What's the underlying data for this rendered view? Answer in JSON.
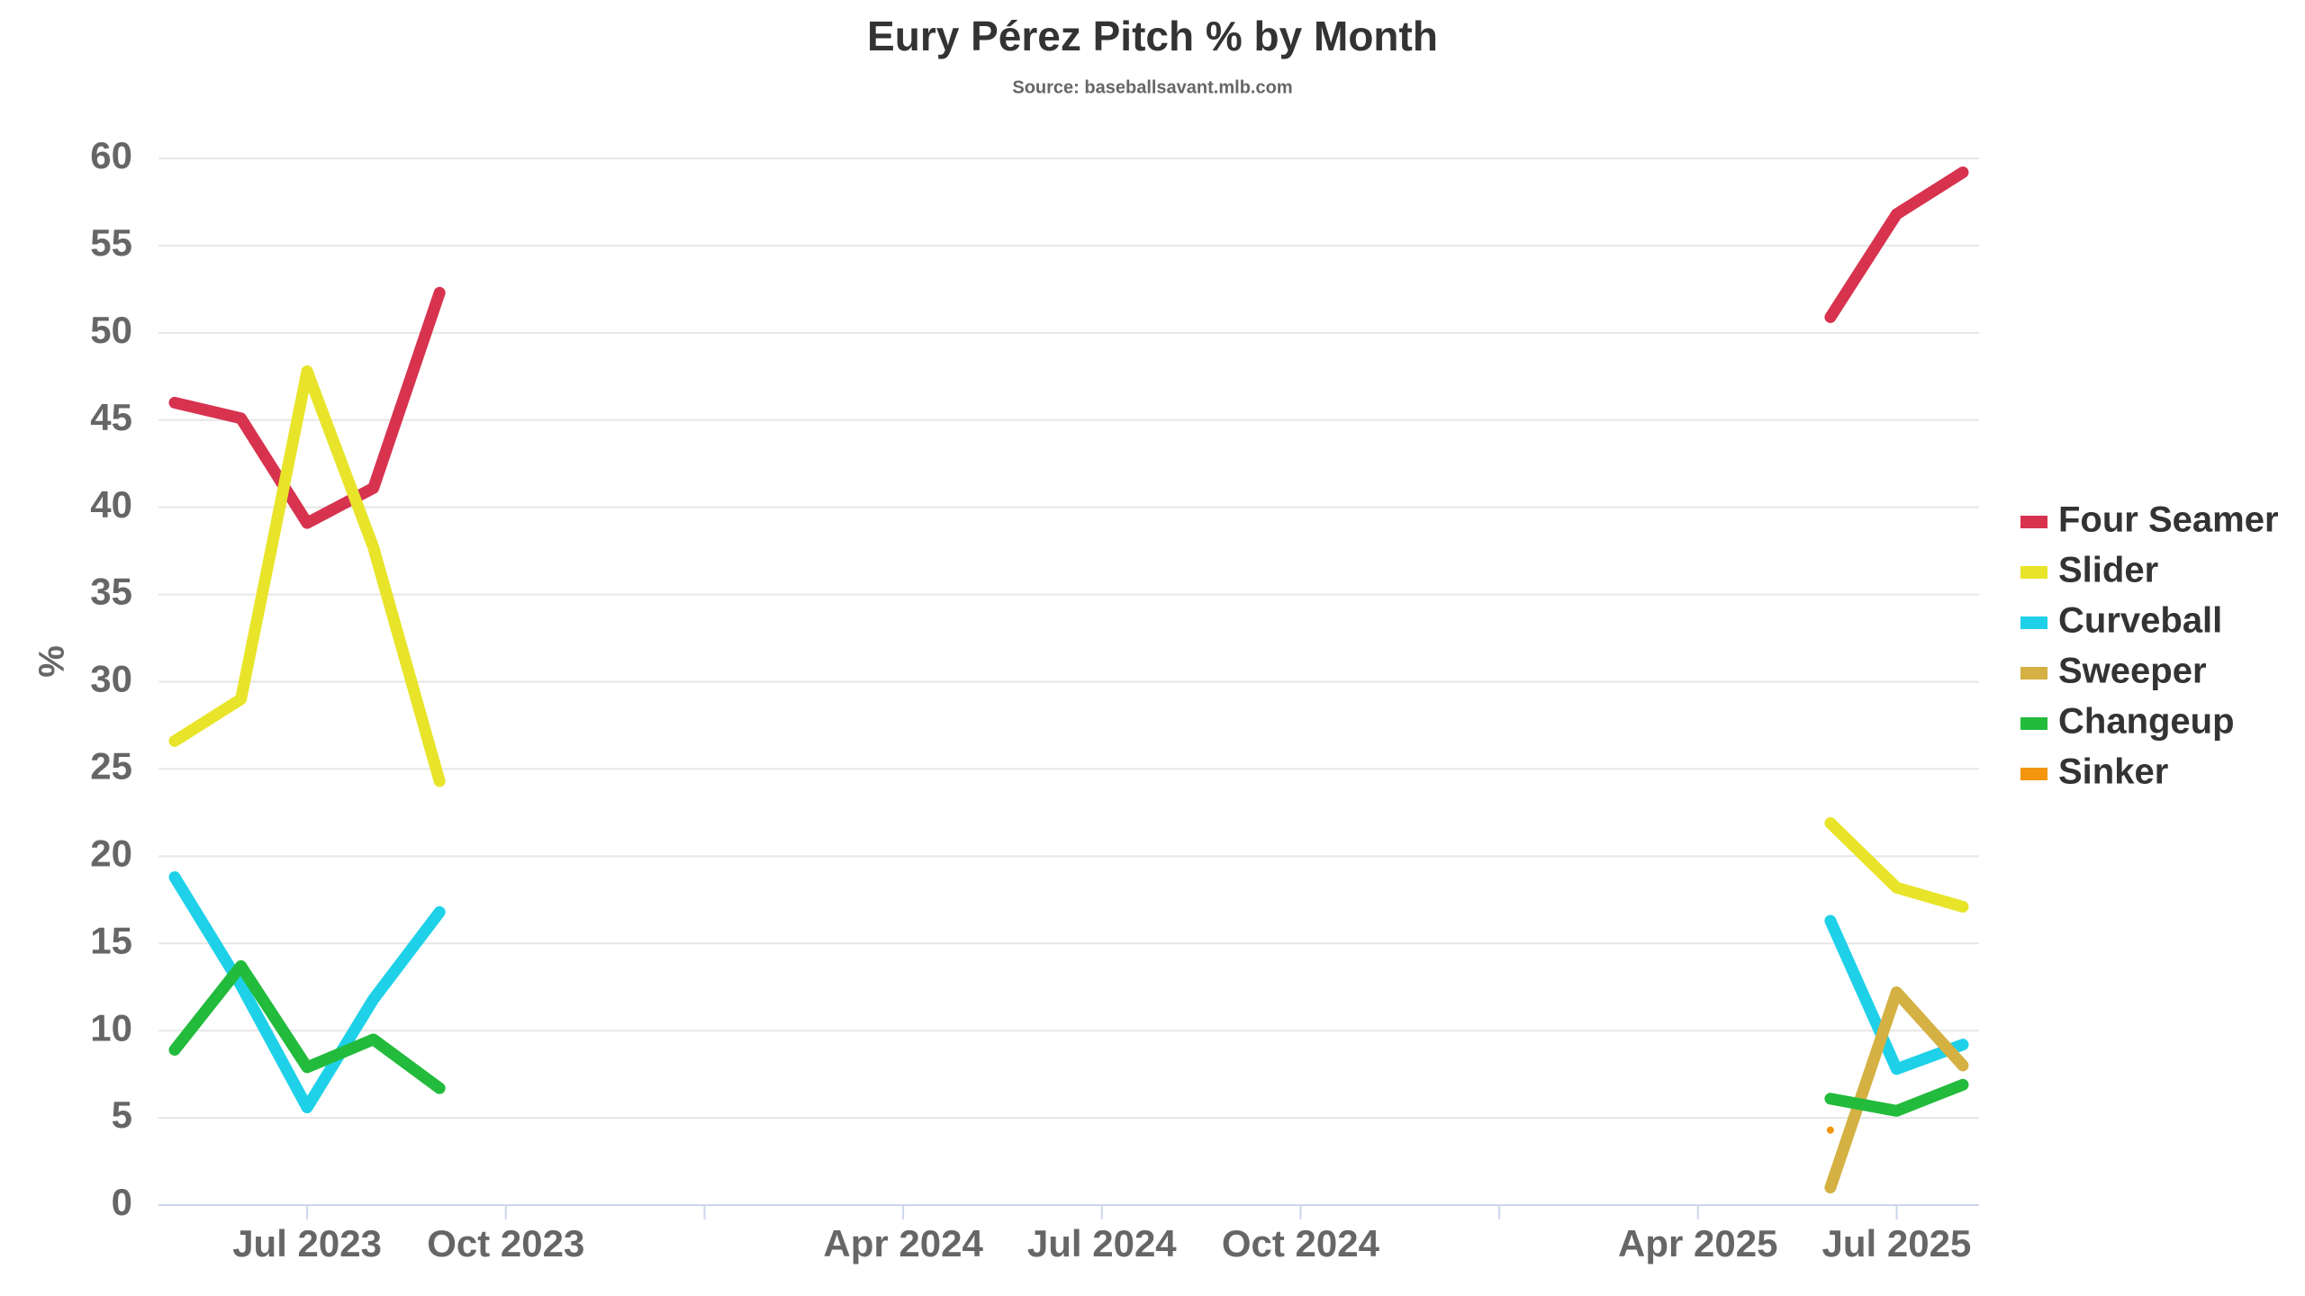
{
  "chart_data": {
    "type": "line",
    "title": "Eury Pérez Pitch % by Month",
    "subtitle": "Source: baseballsavant.mlb.com",
    "y_label": "%",
    "x": [
      "May 2023",
      "Jun 2023",
      "Jul 2023",
      "Aug 2023",
      "Sep 2023",
      "Jan 2024",
      "Jun 2025",
      "Jul 2025",
      "Aug 2025"
    ],
    "xlim": [
      "May 2023",
      "Aug 2025"
    ],
    "xticks": [
      "Jul 2023",
      "Oct 2023",
      {
        "value": "Jan 2024",
        "label": null
      },
      "Apr 2024",
      "Jul 2024",
      "Oct 2024",
      {
        "value": "Jan 2025",
        "label": null
      },
      "Apr 2025",
      "Jul 2025"
    ],
    "ylim": [
      0,
      60
    ],
    "yticks": [
      0,
      5,
      10,
      15,
      20,
      25,
      30,
      35,
      40,
      45,
      50,
      55,
      60
    ],
    "grid": true,
    "legend": "right",
    "series": [
      {
        "name": "Four Seamer",
        "color": "#d7334f",
        "values": [
          46.0,
          45.1,
          39.1,
          41.1,
          52.3,
          null,
          50.9,
          56.8,
          59.2
        ]
      },
      {
        "name": "Slider",
        "color": "#e8e42a",
        "values": [
          26.6,
          29.0,
          47.8,
          37.7,
          24.3,
          null,
          21.9,
          18.2,
          17.1
        ]
      },
      {
        "name": "Curveball",
        "color": "#1ed1e8",
        "values": [
          18.8,
          12.6,
          5.6,
          11.8,
          16.8,
          null,
          16.3,
          7.8,
          9.2
        ]
      },
      {
        "name": "Sweeper",
        "color": "#d4b142",
        "values": [
          null,
          null,
          null,
          null,
          null,
          null,
          1.0,
          12.2,
          8.0
        ]
      },
      {
        "name": "Changeup",
        "color": "#22bb3c",
        "values": [
          8.9,
          13.7,
          7.9,
          9.5,
          6.7,
          null,
          6.1,
          5.4,
          6.9
        ]
      },
      {
        "name": "Sinker",
        "color": "#f4960f",
        "values": [
          null,
          null,
          null,
          null,
          null,
          null,
          4.3,
          null,
          null
        ]
      }
    ]
  }
}
